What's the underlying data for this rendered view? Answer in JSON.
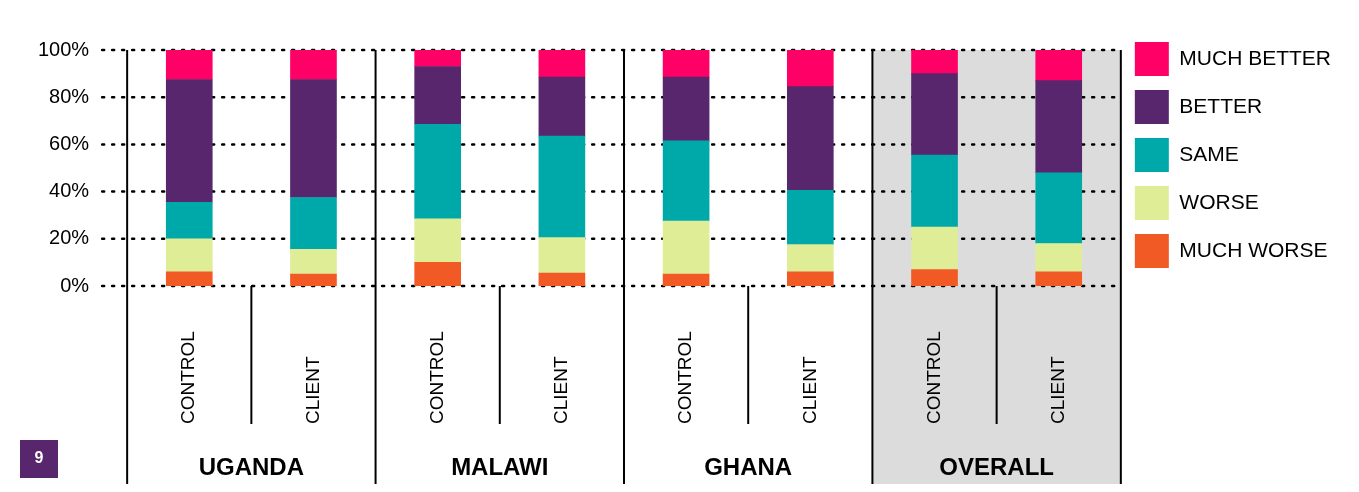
{
  "chart_data": {
    "type": "bar",
    "stacked": true,
    "categories": [
      "CONTROL",
      "CLIENT",
      "CONTROL",
      "CLIENT",
      "CONTROL",
      "CLIENT",
      "CONTROL",
      "CLIENT"
    ],
    "series": [
      {
        "name": "MUCH WORSE",
        "color": "#f15a24",
        "values": [
          6,
          5,
          10,
          5.5,
          5,
          6,
          7,
          6
        ]
      },
      {
        "name": "WORSE",
        "color": "#dfed97",
        "values": [
          14,
          10.5,
          18.5,
          15,
          22.5,
          11.5,
          18,
          12
        ]
      },
      {
        "name": "SAME",
        "color": "#00a9a9",
        "values": [
          15.5,
          22,
          40,
          43,
          34,
          23,
          30.5,
          30
        ]
      },
      {
        "name": "BETTER",
        "color": "#58266c",
        "values": [
          52,
          50,
          24.5,
          25,
          27,
          44,
          34.5,
          39
        ]
      },
      {
        "name": "MUCH BETTER",
        "color": "#ff0066",
        "values": [
          12.5,
          12.5,
          7,
          11.5,
          11.5,
          15.5,
          10,
          13
        ]
      }
    ],
    "ylim": [
      0,
      100
    ],
    "yticks": [
      {
        "value": 0,
        "label": "0%"
      },
      {
        "value": 20,
        "label": "20%"
      },
      {
        "value": 40,
        "label": "40%"
      },
      {
        "value": 60,
        "label": "60%"
      },
      {
        "value": 80,
        "label": "80%"
      },
      {
        "value": 100,
        "label": "100%"
      }
    ],
    "grid": "y",
    "legend": "right",
    "annotations": [
      "UGANDA",
      "MALAWI",
      "GHANA",
      "OVERALL",
      "9"
    ]
  }
}
